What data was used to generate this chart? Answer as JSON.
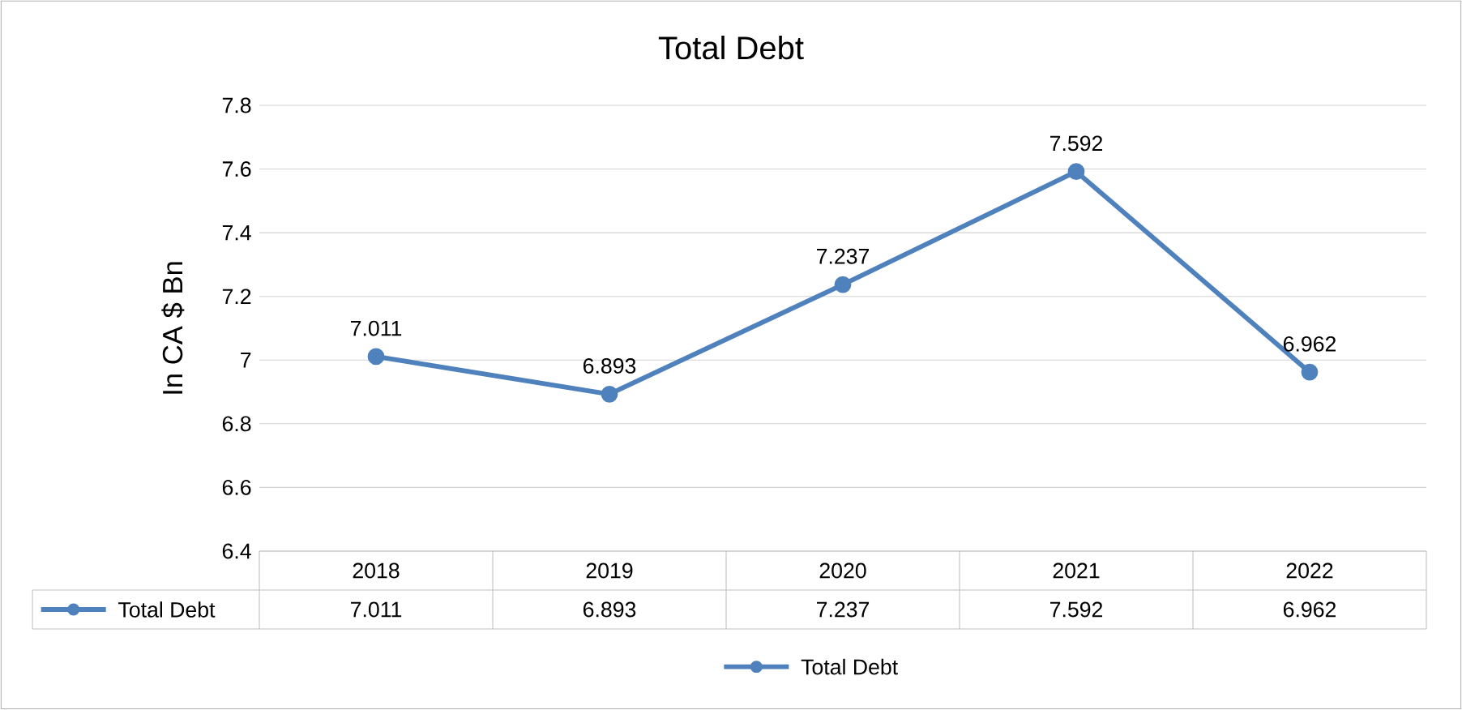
{
  "chart_data": {
    "type": "line",
    "title": "Total Debt",
    "ylabel": "In CA $ Bn",
    "categories": [
      "2018",
      "2019",
      "2020",
      "2021",
      "2022"
    ],
    "series": [
      {
        "name": "Total Debt",
        "color": "#4f81bd",
        "values": [
          7.011,
          6.893,
          7.237,
          7.592,
          6.962
        ],
        "value_labels": [
          "7.011",
          "6.893",
          "7.237",
          "7.592",
          "6.962"
        ]
      }
    ],
    "ylim": [
      6.4,
      7.8
    ],
    "yticks": [
      6.4,
      6.6,
      6.8,
      7,
      7.2,
      7.4,
      7.6,
      7.8
    ],
    "grid": "y",
    "legend": "bottom",
    "marker": "circle",
    "line_style": "solid"
  }
}
